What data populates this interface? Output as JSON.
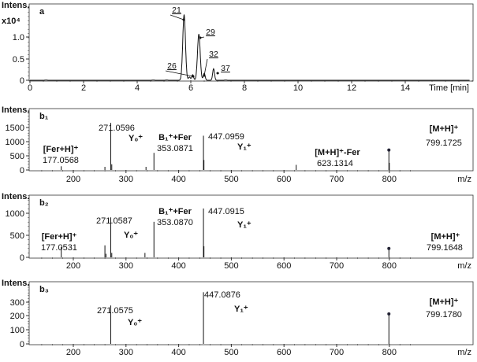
{
  "chart_data": [
    {
      "type": "line",
      "panel_label": "a",
      "ylabel": "Intens.",
      "y_multiplier": "x10⁴",
      "xlabel": "Time [min]",
      "xlim": [
        0,
        16.5
      ],
      "ylim": [
        0,
        1.65
      ],
      "x_ticks": [
        "0",
        "2",
        "4",
        "6",
        "8",
        "10",
        "12",
        "14"
      ],
      "y_ticks": [
        "0",
        "0.5",
        "1.0"
      ],
      "peaks": [
        {
          "label": "21",
          "rt": 5.75,
          "intensity": 1.42
        },
        {
          "label": "26",
          "rt": 6.07,
          "intensity": 0.12
        },
        {
          "label": "29",
          "rt": 6.3,
          "intensity": 1.0
        },
        {
          "label": "32",
          "rt": 6.5,
          "intensity": 0.15
        },
        {
          "label": "37",
          "rt": 6.85,
          "intensity": 0.25
        }
      ]
    },
    {
      "type": "bar",
      "panel_label": "b₁",
      "ylabel": "Intens.",
      "xlabel": "m/z",
      "xlim": [
        135,
        850
      ],
      "ylim": [
        0,
        2150
      ],
      "x_ticks": [
        "200",
        "300",
        "400",
        "500",
        "600",
        "700",
        "800"
      ],
      "y_ticks": [
        "0",
        "500",
        "1000",
        "1500"
      ],
      "peaks": [
        {
          "mz": 177.0568,
          "intensity": 130,
          "mz_label": "177.0568",
          "ion": "[Fer+H]⁺"
        },
        {
          "mz": 260,
          "intensity": 110
        },
        {
          "mz": 271.0596,
          "intensity": 1650,
          "mz_label": "271.0596",
          "ion": "Y₀⁺"
        },
        {
          "mz": 273,
          "intensity": 200
        },
        {
          "mz": 338,
          "intensity": 110
        },
        {
          "mz": 353.0871,
          "intensity": 600,
          "mz_label": "353.0871",
          "ion": "B₁⁺+Fer"
        },
        {
          "mz": 447.0959,
          "intensity": 1200,
          "mz_label": "447.0959",
          "ion": "Y₁⁺"
        },
        {
          "mz": 448,
          "intensity": 350
        },
        {
          "mz": 623.1314,
          "intensity": 180,
          "mz_label": "623.1314",
          "ion": "[M+H]⁺-Fer"
        },
        {
          "mz": 799.1725,
          "intensity": 700,
          "mz_label": "799.1725",
          "ion": "[M+H]⁺",
          "marker": true
        },
        {
          "mz": 800,
          "intensity": 250
        }
      ]
    },
    {
      "type": "bar",
      "panel_label": "b₂",
      "ylabel": "Intens.",
      "xlabel": "m/z",
      "xlim": [
        135,
        850
      ],
      "ylim": [
        0,
        1400
      ],
      "x_ticks": [
        "200",
        "300",
        "400",
        "500",
        "600",
        "700",
        "800"
      ],
      "y_ticks": [
        "0",
        "500",
        "1000"
      ],
      "peaks": [
        {
          "mz": 177.0531,
          "intensity": 230,
          "mz_label": "177.0531",
          "ion": "[Fer+H]⁺"
        },
        {
          "mz": 260,
          "intensity": 270
        },
        {
          "mz": 262,
          "intensity": 80
        },
        {
          "mz": 271.0587,
          "intensity": 900,
          "mz_label": "271.0587",
          "ion": "Y₀⁺"
        },
        {
          "mz": 273,
          "intensity": 100
        },
        {
          "mz": 336,
          "intensity": 100
        },
        {
          "mz": 353.087,
          "intensity": 800,
          "mz_label": "353.0870",
          "ion": "B₁⁺+Fer"
        },
        {
          "mz": 447.0915,
          "intensity": 1100,
          "mz_label": "447.0915",
          "ion": "Y₁⁺"
        },
        {
          "mz": 448,
          "intensity": 250
        },
        {
          "mz": 799.1648,
          "intensity": 200,
          "mz_label": "799.1648",
          "ion": "[M+H]⁺",
          "marker": true
        }
      ]
    },
    {
      "type": "bar",
      "panel_label": "b₃",
      "ylabel": "Intens.",
      "xlabel": "m/z",
      "xlim": [
        135,
        850
      ],
      "ylim": [
        0,
        445
      ],
      "x_ticks": [
        "200",
        "300",
        "400",
        "500",
        "600",
        "700",
        "800"
      ],
      "y_ticks": [
        "0",
        "100",
        "200",
        "300"
      ],
      "peaks": [
        {
          "mz": 271.0575,
          "intensity": 275,
          "mz_label": "271.0575",
          "ion": "Y₀⁺"
        },
        {
          "mz": 447.0876,
          "intensity": 370,
          "mz_label": "447.0876",
          "ion": "Y₁⁺"
        },
        {
          "mz": 799.178,
          "intensity": 215,
          "mz_label": "799.1780",
          "ion": "[M+H]⁺",
          "marker": true
        }
      ]
    }
  ]
}
